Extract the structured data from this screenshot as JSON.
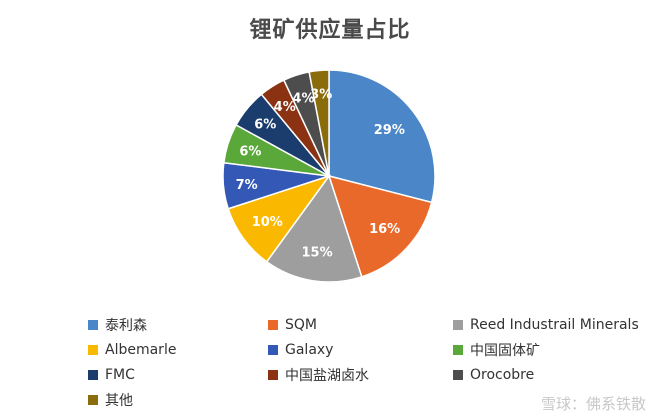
{
  "chart_data": {
    "type": "pie",
    "title": "锂矿供应量占比",
    "categories": [
      "泰利森",
      "SQM",
      "Reed Industrail Minerals",
      "Albemarle",
      "Galaxy",
      "中国固体矿",
      "FMC",
      "中国盐湖卤水",
      "Orocobre",
      "其他"
    ],
    "values": [
      29,
      16,
      15,
      10,
      7,
      6,
      6,
      4,
      4,
      3
    ],
    "labels": [
      "29%",
      "16%",
      "15%",
      "10%",
      "7%",
      "6%",
      "6%",
      "4%",
      "4%",
      "3%"
    ],
    "colors": [
      "#4a86c8",
      "#e8692a",
      "#9e9e9e",
      "#fbb800",
      "#3358b5",
      "#5aa73a",
      "#1a3d6e",
      "#8b3213",
      "#4d4d4d",
      "#8a6d0a"
    ],
    "legend_position": "bottom"
  },
  "watermark": "雪球：佛系铁散"
}
